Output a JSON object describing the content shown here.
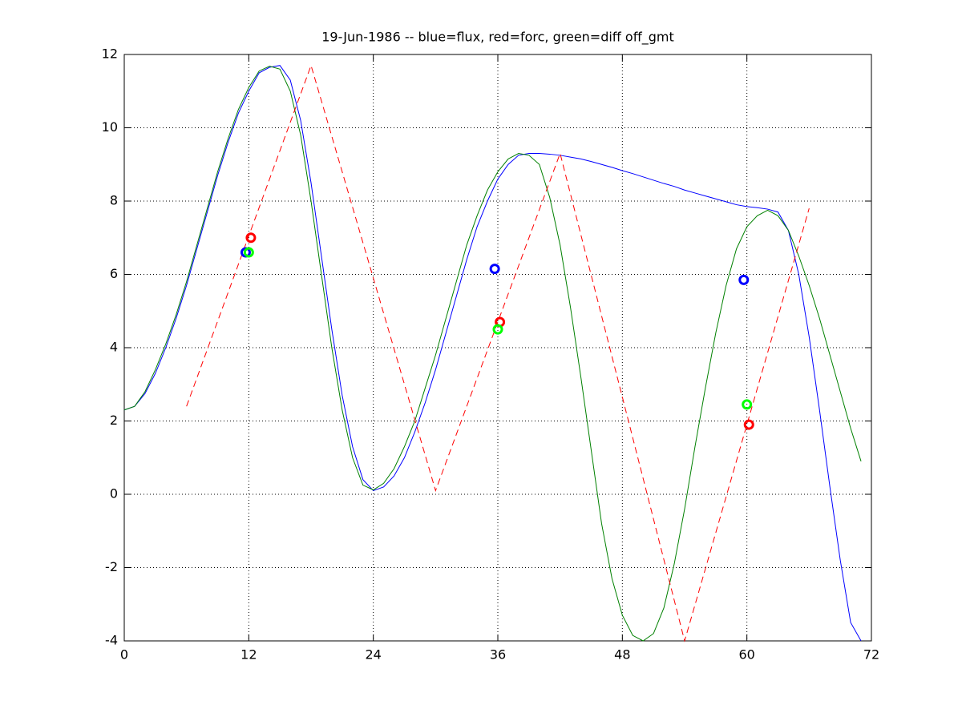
{
  "chart_data": {
    "type": "line",
    "title": "19-Jun-1986 -- blue=flux, red=forc, green=diff off_gmt",
    "xlim": [
      0,
      72
    ],
    "xticks": [
      0,
      12,
      24,
      36,
      48,
      60,
      72
    ],
    "ylim": [
      -4,
      12
    ],
    "yticks": [
      -4,
      -2,
      0,
      2,
      4,
      6,
      8,
      10,
      12
    ],
    "grid": true,
    "series": [
      {
        "color": "#0000ff",
        "style": "solid",
        "x": [
          0,
          1,
          2,
          3,
          4,
          5,
          6,
          7,
          8,
          9,
          10,
          11,
          12,
          13,
          14,
          15,
          16,
          17,
          18,
          19,
          20,
          21,
          22,
          23,
          24,
          25,
          26,
          27,
          28,
          29,
          30,
          31,
          32,
          33,
          34,
          35,
          36,
          37,
          38,
          39,
          40,
          41,
          42,
          43,
          44,
          45,
          46,
          47,
          48,
          49,
          50,
          51,
          52,
          53,
          54,
          55,
          56,
          57,
          58,
          59,
          60,
          61,
          62,
          63,
          64,
          65,
          66,
          67,
          68,
          69,
          70,
          71
        ],
        "values": [
          2.3,
          2.4,
          2.75,
          3.3,
          4.0,
          4.8,
          5.7,
          6.7,
          7.7,
          8.7,
          9.6,
          10.4,
          11.0,
          11.5,
          11.65,
          11.7,
          11.3,
          10.2,
          8.5,
          6.5,
          4.5,
          2.7,
          1.3,
          0.4,
          0.1,
          0.2,
          0.5,
          1.0,
          1.7,
          2.5,
          3.4,
          4.4,
          5.4,
          6.4,
          7.3,
          8.0,
          8.6,
          9.0,
          9.25,
          9.3,
          9.3,
          9.28,
          9.25,
          9.2,
          9.15,
          9.08,
          9.0,
          8.92,
          8.83,
          8.75,
          8.66,
          8.57,
          8.48,
          8.4,
          8.3,
          8.22,
          8.14,
          8.06,
          7.98,
          7.9,
          7.85,
          7.82,
          7.78,
          7.7,
          7.2,
          6.0,
          4.3,
          2.3,
          0.2,
          -1.8,
          -3.5,
          -4.0
        ]
      },
      {
        "color": "#008000",
        "style": "solid",
        "x": [
          0,
          1,
          2,
          3,
          4,
          5,
          6,
          7,
          8,
          9,
          10,
          11,
          12,
          13,
          14,
          15,
          16,
          17,
          18,
          19,
          20,
          21,
          22,
          23,
          24,
          25,
          26,
          27,
          28,
          29,
          30,
          31,
          32,
          33,
          34,
          35,
          36,
          37,
          38,
          39,
          40,
          41,
          42,
          43,
          44,
          45,
          46,
          47,
          48,
          49,
          50,
          51,
          52,
          53,
          54,
          55,
          56,
          57,
          58,
          59,
          60,
          61,
          62,
          63,
          64,
          65,
          66,
          67,
          68,
          69,
          70,
          71
        ],
        "values": [
          2.3,
          2.4,
          2.8,
          3.4,
          4.1,
          4.9,
          5.8,
          6.8,
          7.8,
          8.8,
          9.7,
          10.5,
          11.1,
          11.55,
          11.68,
          11.6,
          11.0,
          9.8,
          8.0,
          6.0,
          4.0,
          2.3,
          1.0,
          0.25,
          0.12,
          0.3,
          0.7,
          1.3,
          2.0,
          2.9,
          3.8,
          4.8,
          5.8,
          6.8,
          7.6,
          8.3,
          8.8,
          9.15,
          9.3,
          9.25,
          9.0,
          8.1,
          6.8,
          5.1,
          3.2,
          1.2,
          -0.8,
          -2.3,
          -3.3,
          -3.85,
          -4.0,
          -3.8,
          -3.1,
          -1.9,
          -0.4,
          1.3,
          2.9,
          4.4,
          5.7,
          6.7,
          7.3,
          7.6,
          7.75,
          7.6,
          7.2,
          6.5,
          5.7,
          4.8,
          3.8,
          2.8,
          1.8,
          0.9
        ]
      },
      {
        "color": "#ff0000",
        "style": "dashed",
        "x": [
          6,
          18,
          30,
          42,
          54,
          66
        ],
        "values": [
          2.4,
          11.7,
          0.1,
          9.3,
          -4.0,
          7.8
        ]
      },
      {
        "color": "#0000ff",
        "style": "markers",
        "x": [
          11.7,
          35.7,
          59.7
        ],
        "values": [
          6.6,
          6.15,
          5.85
        ]
      },
      {
        "color": "#ff0000",
        "style": "markers",
        "x": [
          12.2,
          36.2,
          60.2
        ],
        "values": [
          7.0,
          4.7,
          1.9
        ]
      },
      {
        "color": "#00ff00",
        "style": "markers",
        "x": [
          12.0,
          36.0,
          60.0
        ],
        "values": [
          6.6,
          4.5,
          2.45
        ]
      }
    ]
  }
}
